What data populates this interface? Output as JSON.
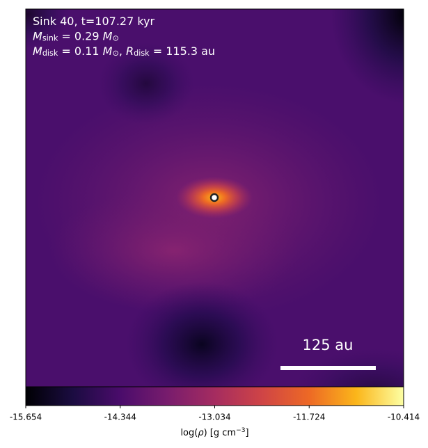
{
  "chart_data": {
    "type": "heatmap",
    "colormap": "inferno",
    "annotations": [
      {
        "runs": [
          {
            "text": "Sink 40, t=107.27 kyr"
          }
        ]
      },
      {
        "runs": [
          {
            "text": "M",
            "italic": true
          },
          {
            "text": "sink",
            "sub": true
          },
          {
            "text": " = 0.29 "
          },
          {
            "text": "M",
            "italic": true
          },
          {
            "text": "⊙",
            "sub": true
          }
        ]
      },
      {
        "runs": [
          {
            "text": "M",
            "italic": true
          },
          {
            "text": "disk",
            "sub": true
          },
          {
            "text": " = 0.11 "
          },
          {
            "text": "M",
            "italic": true
          },
          {
            "text": "⊙",
            "sub": true
          },
          {
            "text": ", "
          },
          {
            "text": "R",
            "italic": true
          },
          {
            "text": "disk",
            "sub": true
          },
          {
            "text": " = 115.3 au"
          }
        ]
      }
    ],
    "scale_bar": {
      "label": "125 au"
    },
    "colorbar": {
      "label_runs": [
        {
          "text": "log("
        },
        {
          "text": "ρ",
          "italic": true
        },
        {
          "text": ") [g cm"
        },
        {
          "text": "−3",
          "sup": true
        },
        {
          "text": "]"
        }
      ],
      "clim": [
        -15.654,
        -10.414
      ],
      "ticks": [
        -15.654,
        -14.344,
        -13.034,
        -11.724,
        -10.414
      ]
    }
  }
}
